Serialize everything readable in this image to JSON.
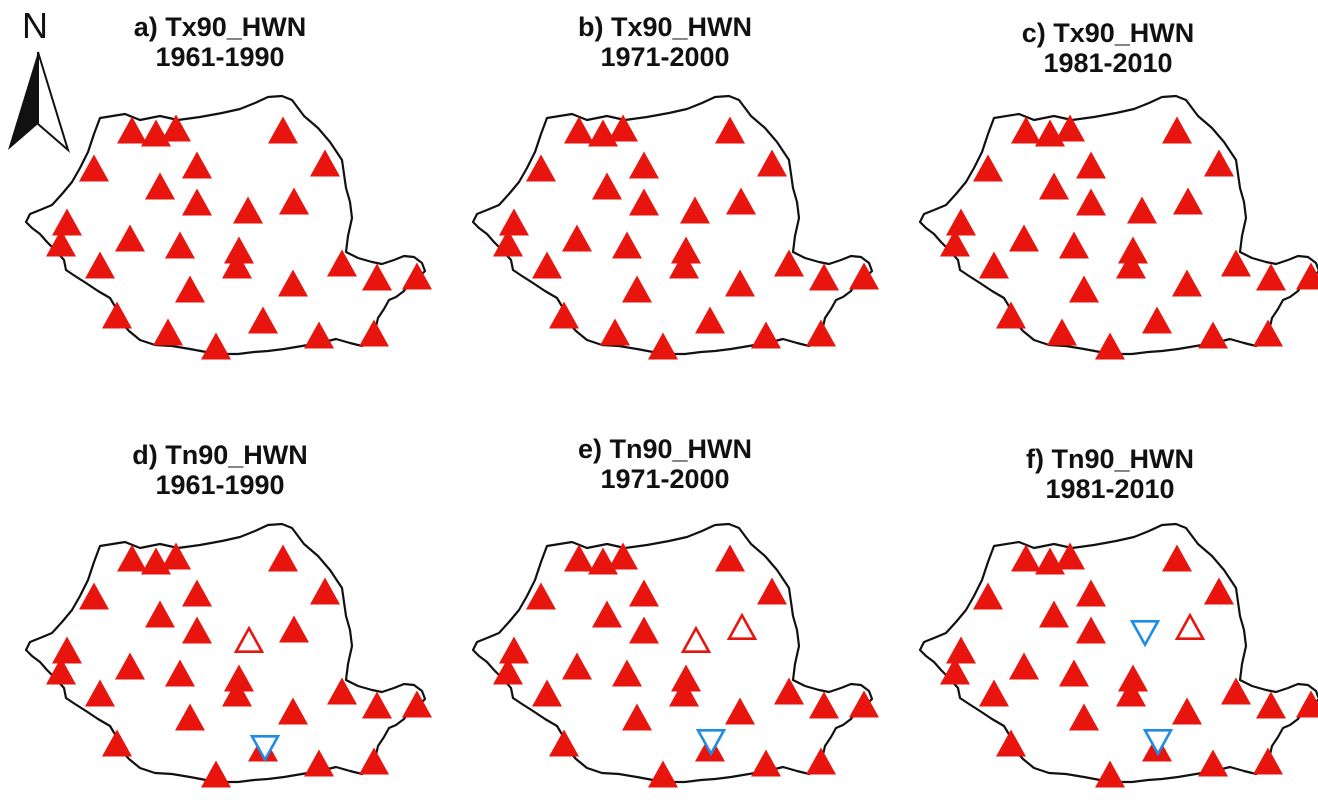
{
  "figure": {
    "north_label": "N",
    "colors": {
      "increase_sig": "#e8150f",
      "increase_nonsig": "#e8150f",
      "decrease_nonsig": "#1f8ce6",
      "border": "#111111"
    },
    "panels": [
      {
        "title": "a) Tx90_HWN",
        "period": "1961-1990",
        "extra_markers": []
      },
      {
        "title": "b) Tx90_HWN",
        "period": "1971-2000",
        "extra_markers": []
      },
      {
        "title": "c) Tx90_HWN",
        "period": "1981-2010",
        "extra_markers": []
      },
      {
        "title": "d) Tn90_HWN",
        "period": "1961-1990",
        "extra_markers": [
          {
            "type": "increase-nonsignificant"
          },
          {
            "type": "decrease-nonsignificant"
          }
        ]
      },
      {
        "title": "e) Tn90_HWN",
        "period": "1971-2000",
        "extra_markers": [
          {
            "type": "increase-nonsignificant"
          },
          {
            "type": "increase-nonsignificant"
          },
          {
            "type": "decrease-nonsignificant"
          }
        ]
      },
      {
        "title": "f) Tn90_HWN",
        "period": "1981-2010",
        "extra_markers": [
          {
            "type": "decrease-nonsignificant"
          },
          {
            "type": "increase-nonsignificant"
          },
          {
            "type": "decrease-nonsignificant"
          }
        ]
      }
    ]
  }
}
